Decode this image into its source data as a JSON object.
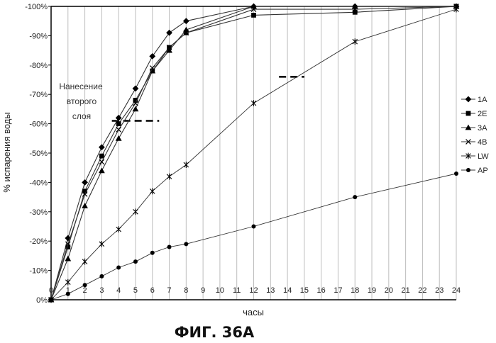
{
  "figure_caption": "ФИГ. 36A",
  "chart_data": {
    "type": "line",
    "xlabel": "часы",
    "ylabel": "% испарения воды",
    "x_ticks": [
      "0",
      "1",
      "2",
      "3",
      "4",
      "5",
      "6",
      "7",
      "8",
      "9",
      "10",
      "11",
      "12",
      "13",
      "14",
      "15",
      "16",
      "17",
      "18",
      "19",
      "20",
      "21",
      "22",
      "23",
      "24"
    ],
    "y_ticks": [
      "0%",
      "-10%",
      "-20%",
      "-30%",
      "-40%",
      "-50%",
      "-60%",
      "-70%",
      "-80%",
      "-90%",
      "-100%"
    ],
    "xlim": [
      0,
      24
    ],
    "ylim": [
      0,
      100
    ],
    "grid": "vertical",
    "legend_position": "right",
    "annotations": [
      {
        "text_lines": [
          "Нанесение",
          "второго",
          "слоя"
        ],
        "dash_y": 61,
        "dash_x": [
          3.6,
          6.4
        ]
      },
      {
        "dash_y": 76,
        "dash_x": [
          13.5,
          15.0
        ]
      }
    ],
    "series": [
      {
        "name": "1A",
        "marker": "diamond",
        "x": [
          0,
          1,
          2,
          3,
          4,
          5,
          6,
          7,
          8,
          12,
          18,
          24
        ],
        "y": [
          0,
          21,
          40,
          52,
          62,
          72,
          83,
          91,
          95,
          100,
          100,
          100
        ]
      },
      {
        "name": "2E",
        "marker": "square",
        "x": [
          0,
          1,
          2,
          3,
          4,
          5,
          6,
          7,
          8,
          12,
          18,
          24
        ],
        "y": [
          0,
          18,
          37,
          49,
          60,
          68,
          78,
          86,
          91,
          97,
          98,
          100
        ]
      },
      {
        "name": "3A",
        "marker": "triangle",
        "x": [
          0,
          1,
          2,
          3,
          4,
          5,
          6,
          7,
          8,
          12,
          18,
          24
        ],
        "y": [
          0,
          14,
          32,
          44,
          55,
          65,
          78,
          85,
          92,
          100,
          100,
          100
        ]
      },
      {
        "name": "4B",
        "marker": "x",
        "x": [
          0,
          1,
          2,
          3,
          4,
          5,
          6,
          7,
          8,
          12,
          18,
          24
        ],
        "y": [
          0,
          19,
          36,
          47,
          58,
          67,
          79,
          86,
          91,
          99,
          99,
          100
        ]
      },
      {
        "name": "LW",
        "marker": "star",
        "x": [
          0,
          1,
          2,
          3,
          4,
          5,
          6,
          7,
          8,
          12,
          18,
          24
        ],
        "y": [
          0,
          6,
          13,
          19,
          24,
          30,
          37,
          42,
          46,
          67,
          88,
          99
        ]
      },
      {
        "name": "AP",
        "marker": "circle",
        "x": [
          0,
          1,
          2,
          3,
          4,
          5,
          6,
          7,
          8,
          12,
          18,
          24
        ],
        "y": [
          0,
          2,
          5,
          8,
          11,
          13,
          16,
          18,
          19,
          25,
          35,
          43
        ]
      }
    ]
  }
}
